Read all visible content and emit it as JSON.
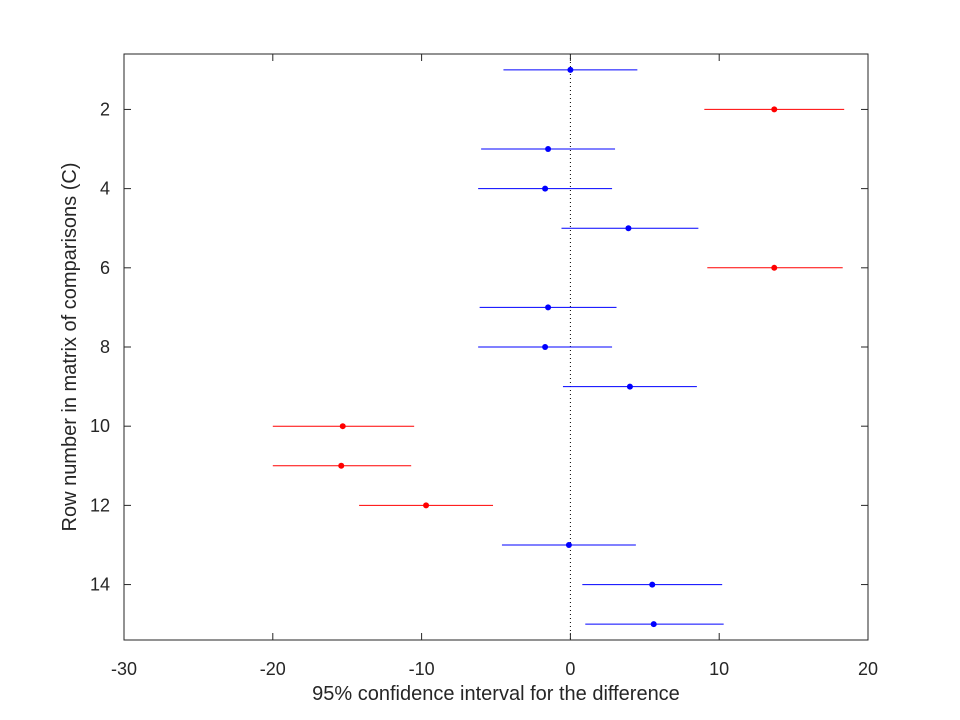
{
  "chart_data": {
    "type": "scatter",
    "title": "",
    "xlabel": "95% confidence interval for the difference",
    "ylabel": "Row number in matrix of comparisons (C)",
    "xlim": [
      -30,
      20
    ],
    "ylim": [
      0.6,
      15.4
    ],
    "y_reversed": true,
    "xticks": [
      -30,
      -20,
      -10,
      0,
      10,
      20
    ],
    "yticks": [
      2,
      4,
      6,
      8,
      10,
      12,
      14
    ],
    "reference_line_x": 0,
    "grid": false,
    "legend": "none",
    "colors": {
      "not_significant": "#0000ff",
      "significant": "#ff0000",
      "axis": "#262626"
    },
    "intervals": [
      {
        "row": 1,
        "lower": -4.5,
        "estimate": 0.0,
        "upper": 4.5,
        "significant": false
      },
      {
        "row": 2,
        "lower": 9.0,
        "estimate": 13.7,
        "upper": 18.4,
        "significant": true
      },
      {
        "row": 3,
        "lower": -6.0,
        "estimate": -1.5,
        "upper": 3.0,
        "significant": false
      },
      {
        "row": 4,
        "lower": -6.2,
        "estimate": -1.7,
        "upper": 2.8,
        "significant": false
      },
      {
        "row": 5,
        "lower": -0.6,
        "estimate": 3.9,
        "upper": 8.6,
        "significant": false
      },
      {
        "row": 6,
        "lower": 9.2,
        "estimate": 13.7,
        "upper": 18.3,
        "significant": true
      },
      {
        "row": 7,
        "lower": -6.1,
        "estimate": -1.5,
        "upper": 3.1,
        "significant": false
      },
      {
        "row": 8,
        "lower": -6.2,
        "estimate": -1.7,
        "upper": 2.8,
        "significant": false
      },
      {
        "row": 9,
        "lower": -0.5,
        "estimate": 4.0,
        "upper": 8.5,
        "significant": false
      },
      {
        "row": 10,
        "lower": -20.0,
        "estimate": -15.3,
        "upper": -10.5,
        "significant": true
      },
      {
        "row": 11,
        "lower": -20.0,
        "estimate": -15.4,
        "upper": -10.7,
        "significant": true
      },
      {
        "row": 12,
        "lower": -14.2,
        "estimate": -9.7,
        "upper": -5.2,
        "significant": true
      },
      {
        "row": 13,
        "lower": -4.6,
        "estimate": -0.1,
        "upper": 4.4,
        "significant": false
      },
      {
        "row": 14,
        "lower": 0.8,
        "estimate": 5.5,
        "upper": 10.2,
        "significant": false
      },
      {
        "row": 15,
        "lower": 1.0,
        "estimate": 5.6,
        "upper": 10.3,
        "significant": false
      }
    ]
  }
}
